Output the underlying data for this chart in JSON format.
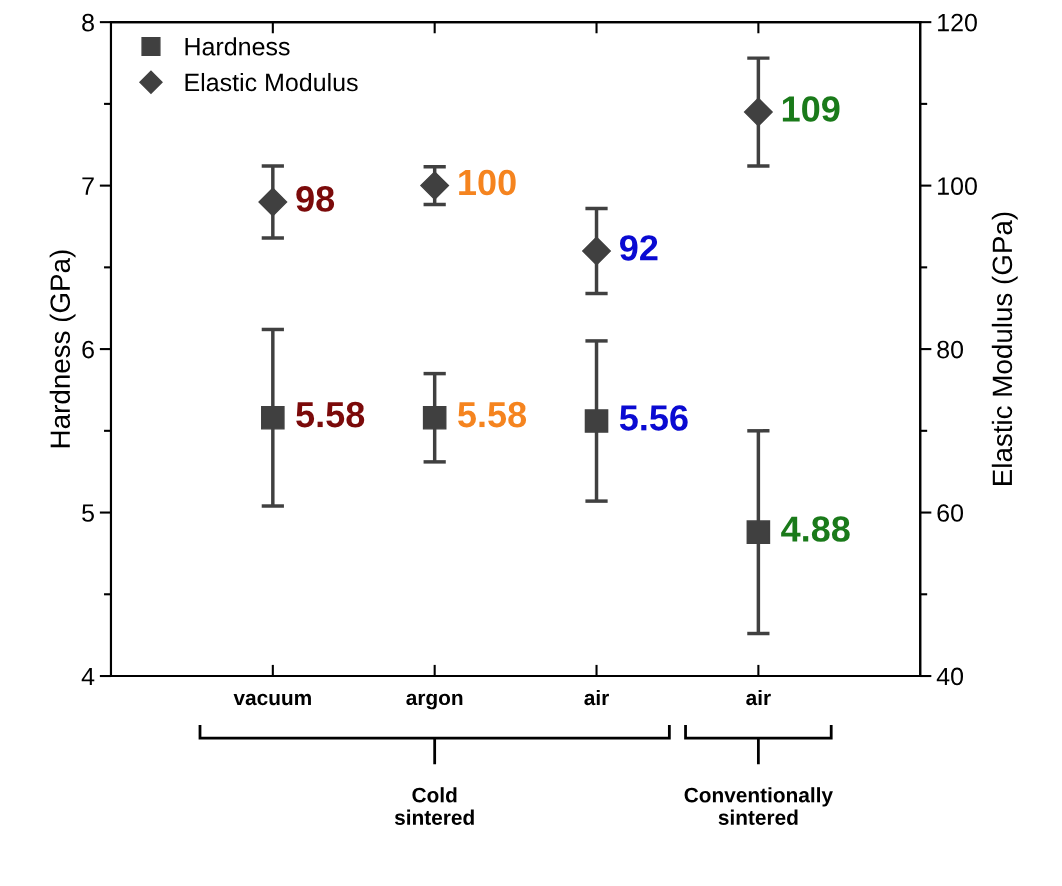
{
  "chart_data": {
    "type": "scatter",
    "categories": [
      "vacuum",
      "argon",
      "air",
      "air"
    ],
    "ylabel": "Hardness (GPa)",
    "y2label": "Elastic Modulus (GPa)",
    "ylim": [
      4,
      8
    ],
    "yticks": [
      4,
      5,
      6,
      7,
      8
    ],
    "y2lim": [
      40,
      120
    ],
    "y2ticks": [
      40,
      60,
      80,
      100,
      120
    ],
    "legend": "top left",
    "grid": false,
    "data_labels": true,
    "series": [
      {
        "name": "Hardness",
        "color": "#404040",
        "marker": "square",
        "values": [
          5.58,
          5.58,
          5.56,
          4.88
        ],
        "errors": [
          0.54,
          0.27,
          0.49,
          0.62
        ]
      },
      {
        "name": "Elastic Modulus",
        "color": "#404040",
        "marker": "diamond",
        "axis": "y2",
        "values": [
          98,
          100,
          92,
          109
        ],
        "errors": [
          4.4,
          2.3,
          5.2,
          6.6
        ]
      }
    ],
    "annotations": [
      "Cold\nsintered",
      "Conventionally\nsintered"
    ]
  }
}
